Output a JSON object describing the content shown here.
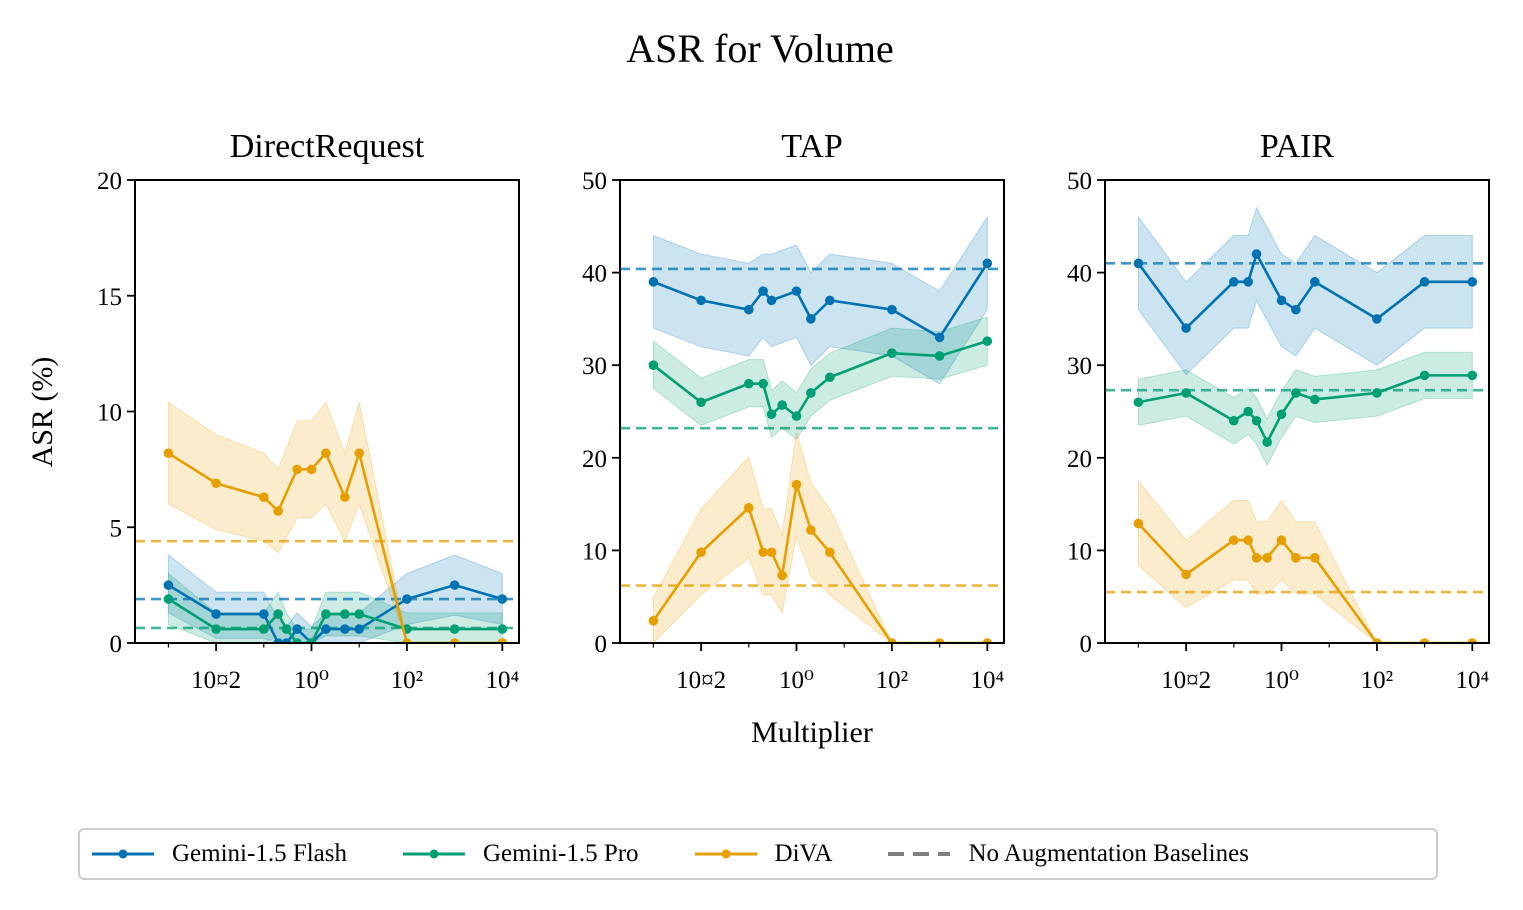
{
  "chart_data": {
    "type": "line",
    "title": "ASR for Volume",
    "xlabel": "Multiplier",
    "ylabel": "ASR (%)",
    "xscale": "log",
    "colors": {
      "Gemini-1.5 Flash": "#0072b2",
      "Gemini-1.5 Pro": "#009e73",
      "DiVA": "#e69f00",
      "No Augmentation Baselines": "#808080"
    },
    "x": [
      0.001,
      0.01,
      0.1,
      0.2,
      0.3,
      0.5,
      1,
      2,
      5,
      10,
      100,
      1000,
      10000
    ],
    "xtick_labels": [
      "10¤2",
      "10⁰",
      "10²",
      "10⁴"
    ],
    "legend": [
      "Gemini-1.5 Flash",
      "Gemini-1.5 Pro",
      "DiVA",
      "No Augmentation Baselines"
    ],
    "legend_position": "bottom-center",
    "panels": [
      {
        "title": "DirectRequest",
        "ylim": [
          0,
          20
        ],
        "yticks": [
          0,
          5,
          10,
          15,
          20
        ],
        "baselines": {
          "Gemini-1.5 Flash": 1.9,
          "Gemini-1.5 Pro": 0.65,
          "DiVA": 4.4
        },
        "series": [
          {
            "name": "Gemini-1.5 Flash",
            "values": [
              2.5,
              1.25,
              1.25,
              0,
              0,
              0.6,
              0,
              0.6,
              0.6,
              0.6,
              1.9,
              2.5,
              1.9
            ],
            "lower": [
              1.3,
              0.2,
              0.2,
              0,
              0,
              0,
              0,
              0,
              0,
              0,
              0.8,
              1.2,
              0.8
            ],
            "upper": [
              3.8,
              2.2,
              2.2,
              1.0,
              0.7,
              1.3,
              0.7,
              1.3,
              1.3,
              1.3,
              3.0,
              3.8,
              3.0
            ]
          },
          {
            "name": "Gemini-1.5 Pro",
            "values": [
              1.9,
              0.6,
              0.6,
              1.25,
              0.6,
              0,
              0,
              1.25,
              1.25,
              1.25,
              0.6,
              0.6,
              0.6
            ],
            "lower": [
              0.8,
              0,
              0,
              0.3,
              0,
              0,
              0,
              0.3,
              0.3,
              0.3,
              0,
              0,
              0
            ],
            "upper": [
              3.0,
              1.3,
              1.3,
              2.2,
              1.3,
              0.6,
              0.6,
              2.2,
              2.2,
              2.2,
              1.3,
              1.3,
              1.3
            ]
          },
          {
            "name": "DiVA",
            "values": [
              8.2,
              6.9,
              6.3,
              5.7,
              7.5,
              7.5,
              8.2,
              6.3,
              8.2,
              0,
              0,
              0,
              0
            ],
            "lower": [
              6.0,
              4.9,
              4.4,
              3.9,
              5.4,
              5.4,
              6.0,
              4.4,
              6.0,
              0,
              0,
              0,
              0
            ],
            "upper": [
              10.4,
              9.0,
              8.2,
              7.5,
              9.6,
              9.6,
              10.4,
              8.2,
              10.4,
              0,
              0,
              0,
              0
            ]
          }
        ]
      },
      {
        "title": "TAP",
        "ylim": [
          0,
          50
        ],
        "yticks": [
          0,
          10,
          20,
          30,
          40,
          50
        ],
        "baselines": {
          "Gemini-1.5 Flash": 40.4,
          "Gemini-1.5 Pro": 23.2,
          "DiVA": 6.2
        },
        "series": [
          {
            "name": "Gemini-1.5 Flash",
            "values": [
              39,
              37,
              36,
              38,
              37,
              38,
              35,
              37,
              36,
              33,
              41
            ],
            "lower": [
              34,
              32,
              31,
              33,
              32,
              33,
              30,
              32,
              31,
              28,
              36
            ],
            "upper": [
              44,
              42,
              41,
              42,
              42,
              43,
              40,
              42,
              41,
              38,
              46
            ]
          },
          {
            "name": "Gemini-1.5 Pro",
            "values": [
              30,
              26,
              28,
              28,
              24.7,
              25.7,
              24.5,
              27,
              28.7,
              31.3,
              31,
              32.6
            ],
            "lower": [
              27.5,
              23.5,
              25.5,
              25.5,
              22.2,
              23.2,
              22,
              24.5,
              26.2,
              28.8,
              28.5,
              30
            ],
            "upper": [
              32.6,
              28.6,
              30.6,
              30.6,
              27.3,
              28.3,
              27,
              29.6,
              31.3,
              34,
              33.6,
              35.2
            ]
          },
          {
            "name": "DiVA",
            "values": [
              2.4,
              9.8,
              14.6,
              9.8,
              9.8,
              7.3,
              17.1,
              12.2,
              9.8,
              0,
              0,
              0
            ],
            "lower": [
              0,
              5.2,
              9.2,
              5.2,
              5.2,
              3.3,
              11.5,
              7.2,
              5.2,
              0,
              0,
              0
            ],
            "upper": [
              4.9,
              14.5,
              20.1,
              14.5,
              14.5,
              11.7,
              22.8,
              17.3,
              14.5,
              0,
              0,
              0
            ]
          }
        ]
      },
      {
        "title": "PAIR",
        "ylim": [
          0,
          50
        ],
        "yticks": [
          0,
          10,
          20,
          30,
          40,
          50
        ],
        "baselines": {
          "Gemini-1.5 Flash": 41,
          "Gemini-1.5 Pro": 27.3,
          "DiVA": 5.5
        },
        "series": [
          {
            "name": "Gemini-1.5 Flash",
            "values": [
              41,
              34,
              39,
              39,
              42,
              37,
              36,
              39,
              35,
              39,
              39
            ],
            "lower": [
              36,
              29,
              34,
              34,
              37,
              32,
              31,
              34,
              30,
              34,
              34
            ],
            "upper": [
              46,
              39,
              44,
              44,
              47,
              42,
              41,
              44,
              40,
              44,
              44
            ]
          },
          {
            "name": "Gemini-1.5 Pro",
            "values": [
              26,
              27,
              24,
              25,
              24,
              21.7,
              24.7,
              27,
              26.3,
              27,
              28.9,
              28.9
            ],
            "lower": [
              23.5,
              24.5,
              21.5,
              22.5,
              21.5,
              19.2,
              22.2,
              24.5,
              23.8,
              24.5,
              26.4,
              26.4
            ],
            "upper": [
              28.5,
              29.5,
              26.5,
              27.5,
              26.5,
              24.2,
              27.2,
              29.5,
              28.8,
              29.5,
              31.4,
              31.4
            ]
          },
          {
            "name": "DiVA",
            "values": [
              12.9,
              7.4,
              11.1,
              11.1,
              9.2,
              9.2,
              11.1,
              9.2,
              9.2,
              0,
              0,
              0
            ],
            "lower": [
              8.4,
              3.8,
              6.8,
              6.8,
              5.3,
              5.3,
              6.8,
              5.3,
              5.3,
              0,
              0,
              0
            ],
            "upper": [
              17.5,
              11.1,
              15.4,
              15.4,
              13.1,
              13.1,
              15.4,
              13.1,
              13.1,
              0,
              0,
              0
            ]
          }
        ]
      }
    ],
    "panel_x": [
      [
        0.001,
        0.01,
        0.1,
        0.2,
        0.3,
        0.5,
        1,
        2,
        5,
        10,
        100,
        1000,
        10000
      ],
      [
        0.001,
        0.01,
        0.1,
        0.2,
        0.3,
        0.5,
        1,
        2,
        5,
        10,
        100,
        1000,
        10000
      ],
      [
        0.001,
        0.01,
        0.1,
        0.2,
        0.3,
        0.5,
        1,
        2,
        5,
        10,
        100,
        1000,
        10000
      ]
    ],
    "series_x": {
      "0": {
        "Gemini-1.5 Flash": [
          0.001,
          0.01,
          0.1,
          0.2,
          0.3,
          0.5,
          1,
          2,
          5,
          10,
          100,
          1000,
          10000
        ],
        "Gemini-1.5 Pro": [
          0.001,
          0.01,
          0.1,
          0.2,
          0.3,
          0.5,
          1,
          2,
          5,
          10,
          100,
          1000,
          10000
        ],
        "DiVA": [
          0.001,
          0.01,
          0.1,
          0.2,
          0.5,
          1,
          2,
          5,
          10,
          100,
          1000,
          10000,
          10000
        ]
      },
      "1": {
        "Gemini-1.5 Flash": [
          0.001,
          0.01,
          0.1,
          0.2,
          0.3,
          1,
          2,
          5,
          100,
          1000,
          10000
        ],
        "Gemini-1.5 Pro": [
          0.001,
          0.01,
          0.1,
          0.2,
          0.3,
          0.5,
          1,
          2,
          5,
          100,
          1000,
          10000
        ],
        "DiVA": [
          0.001,
          0.01,
          0.1,
          0.2,
          0.3,
          0.5,
          1,
          2,
          5,
          100,
          1000,
          10000
        ]
      },
      "2": {
        "Gemini-1.5 Flash": [
          0.001,
          0.01,
          0.1,
          0.2,
          0.3,
          1,
          2,
          5,
          100,
          1000,
          10000
        ],
        "Gemini-1.5 Pro": [
          0.001,
          0.01,
          0.1,
          0.2,
          0.3,
          0.5,
          1,
          2,
          5,
          100,
          1000,
          10000
        ],
        "DiVA": [
          0.001,
          0.01,
          0.1,
          0.2,
          0.3,
          0.5,
          1,
          2,
          5,
          100,
          1000,
          10000
        ]
      }
    }
  }
}
